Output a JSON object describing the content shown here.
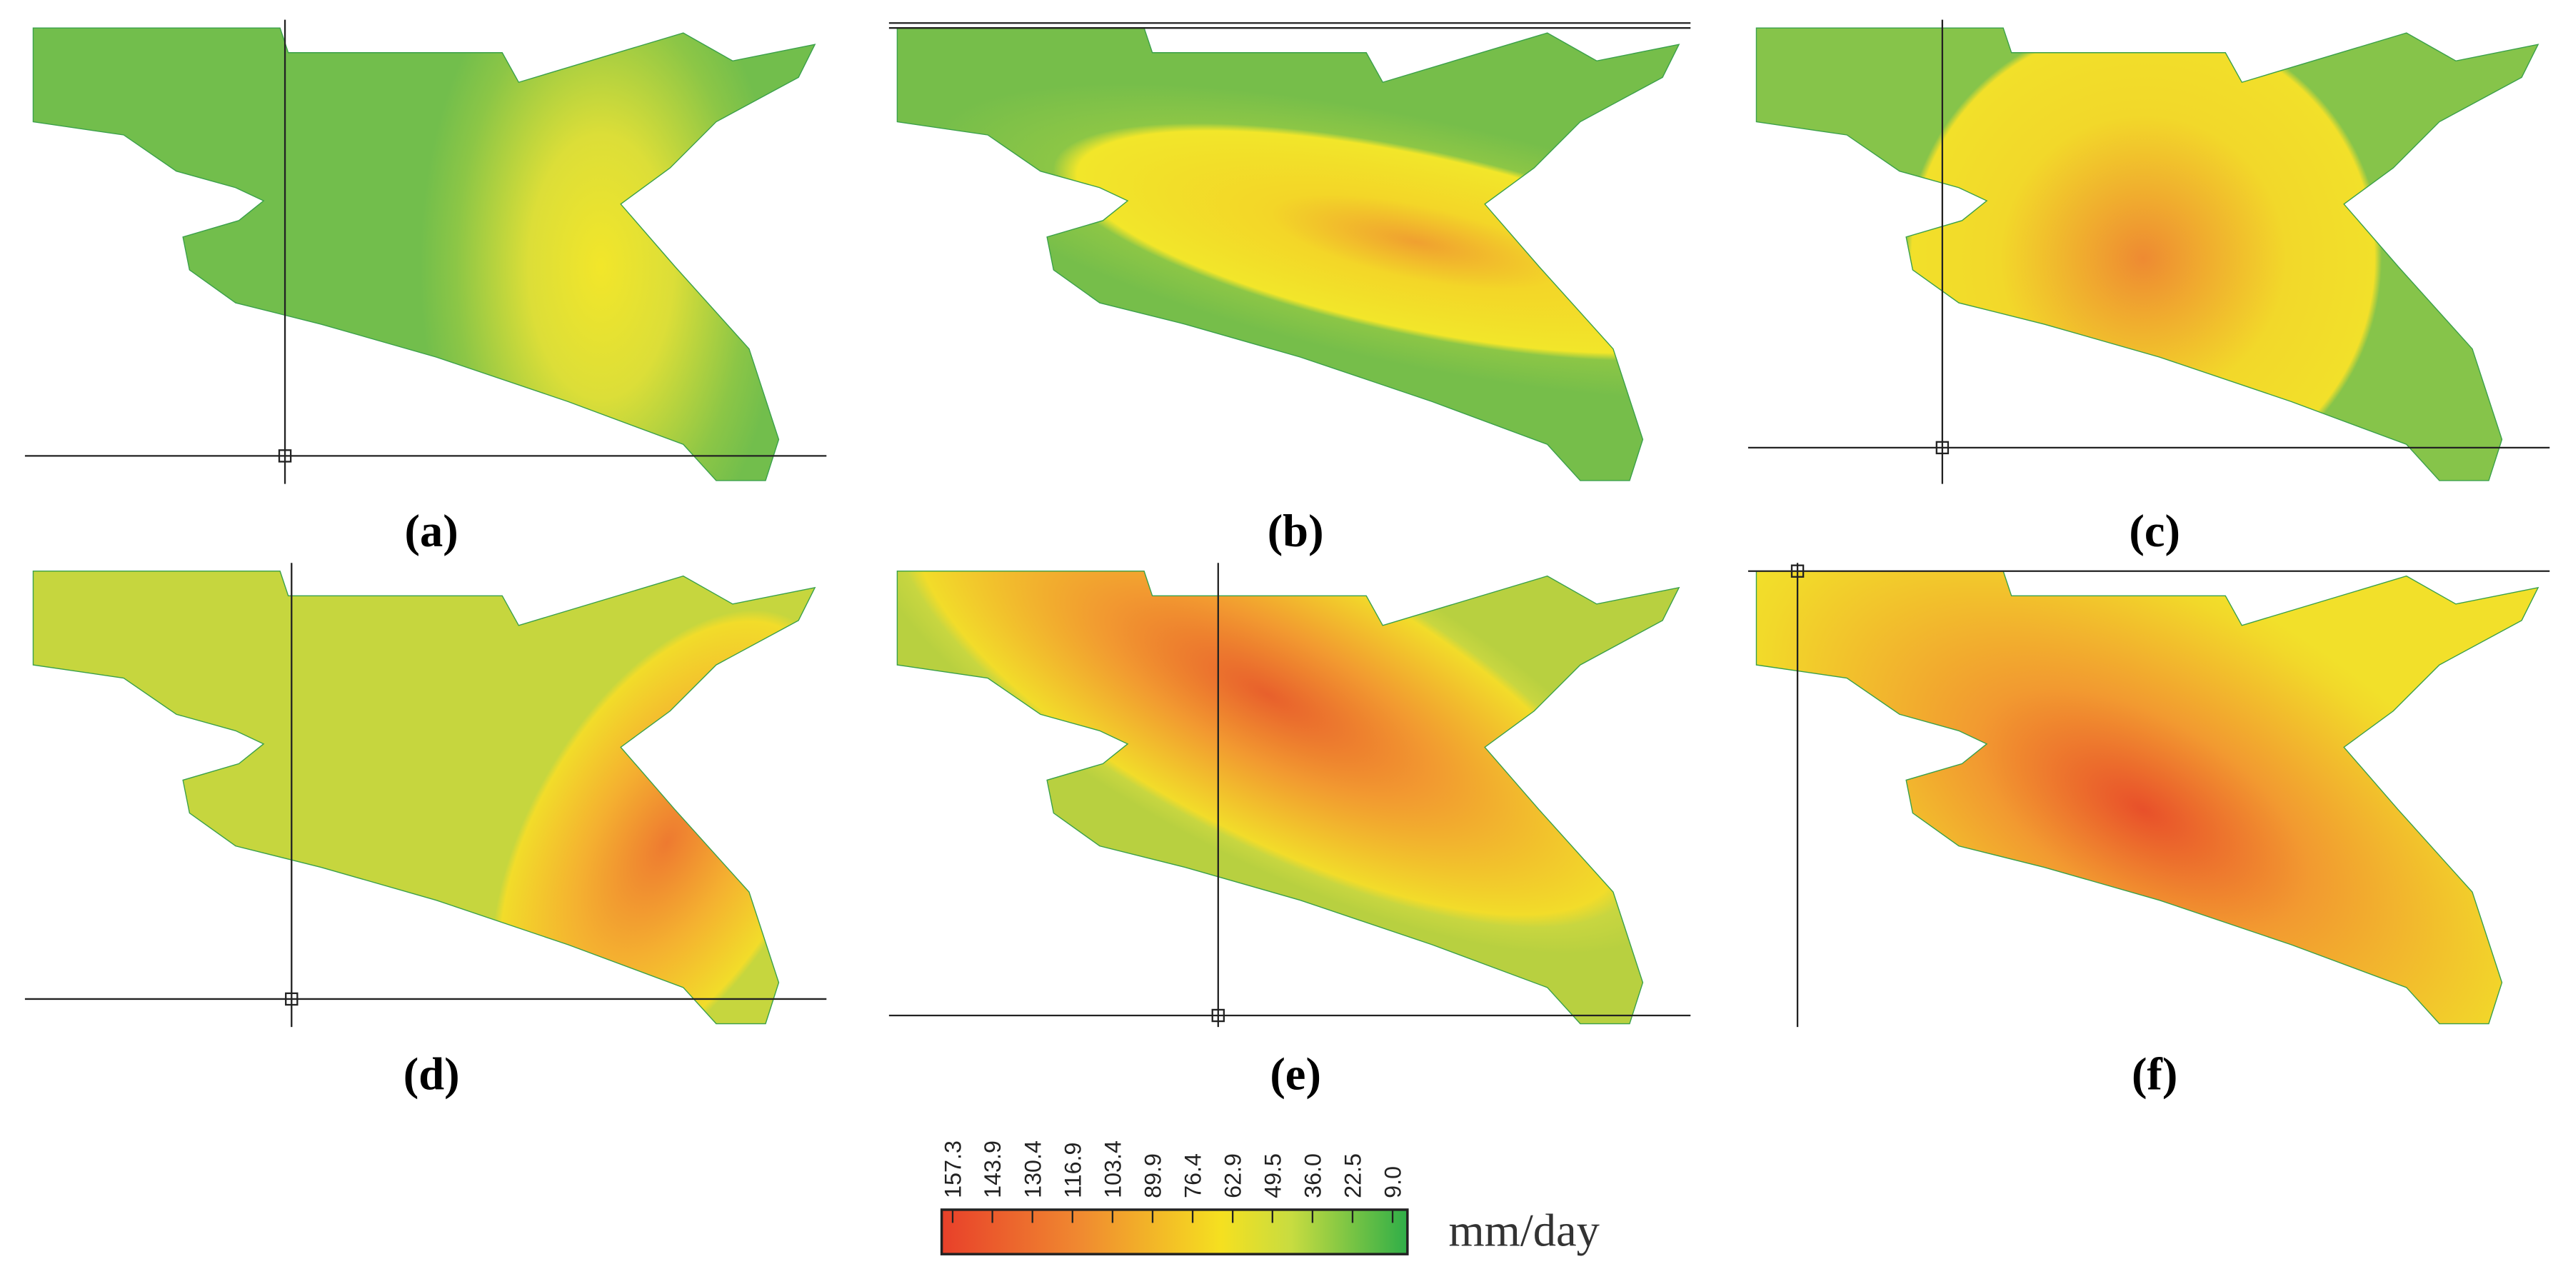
{
  "panels": [
    {
      "label": "(a)"
    },
    {
      "label": "(b)"
    },
    {
      "label": "(c)"
    },
    {
      "label": "(d)"
    },
    {
      "label": "(e)"
    },
    {
      "label": "(f)"
    }
  ],
  "colorbar": {
    "unit": "mm/day",
    "lim": [
      161,
      4
    ],
    "ticks": [
      157.3,
      143.9,
      130.4,
      116.9,
      103.4,
      89.9,
      76.4,
      62.9,
      49.5,
      {
        "value": 36,
        "label": "36.0"
      },
      22.5,
      {
        "value": 9,
        "label": "9.0"
      }
    ]
  }
}
